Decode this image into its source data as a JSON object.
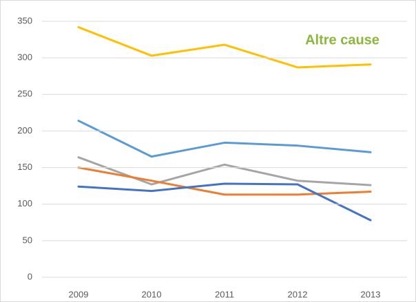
{
  "chart_data": {
    "type": "line",
    "categories": [
      "2009",
      "2010",
      "2011",
      "2012",
      "2013"
    ],
    "series": [
      {
        "color": "#FFC000",
        "values": [
          342,
          303,
          318,
          287,
          291
        ]
      },
      {
        "color": "#5B9BD5",
        "values": [
          214,
          165,
          184,
          180,
          171
        ]
      },
      {
        "color": "#A5A5A5",
        "values": [
          164,
          127,
          154,
          132,
          126
        ]
      },
      {
        "color": "#ED7D31",
        "values": [
          150,
          132,
          113,
          113,
          117
        ]
      },
      {
        "color": "#4472C4",
        "values": [
          124,
          118,
          128,
          127,
          78
        ]
      }
    ],
    "annotations": [
      {
        "text": "Altre cause",
        "color": "#8DB63C"
      }
    ],
    "ylim": [
      0,
      350
    ],
    "yticks": [
      0,
      50,
      100,
      150,
      200,
      250,
      300,
      350
    ],
    "grid": true
  }
}
